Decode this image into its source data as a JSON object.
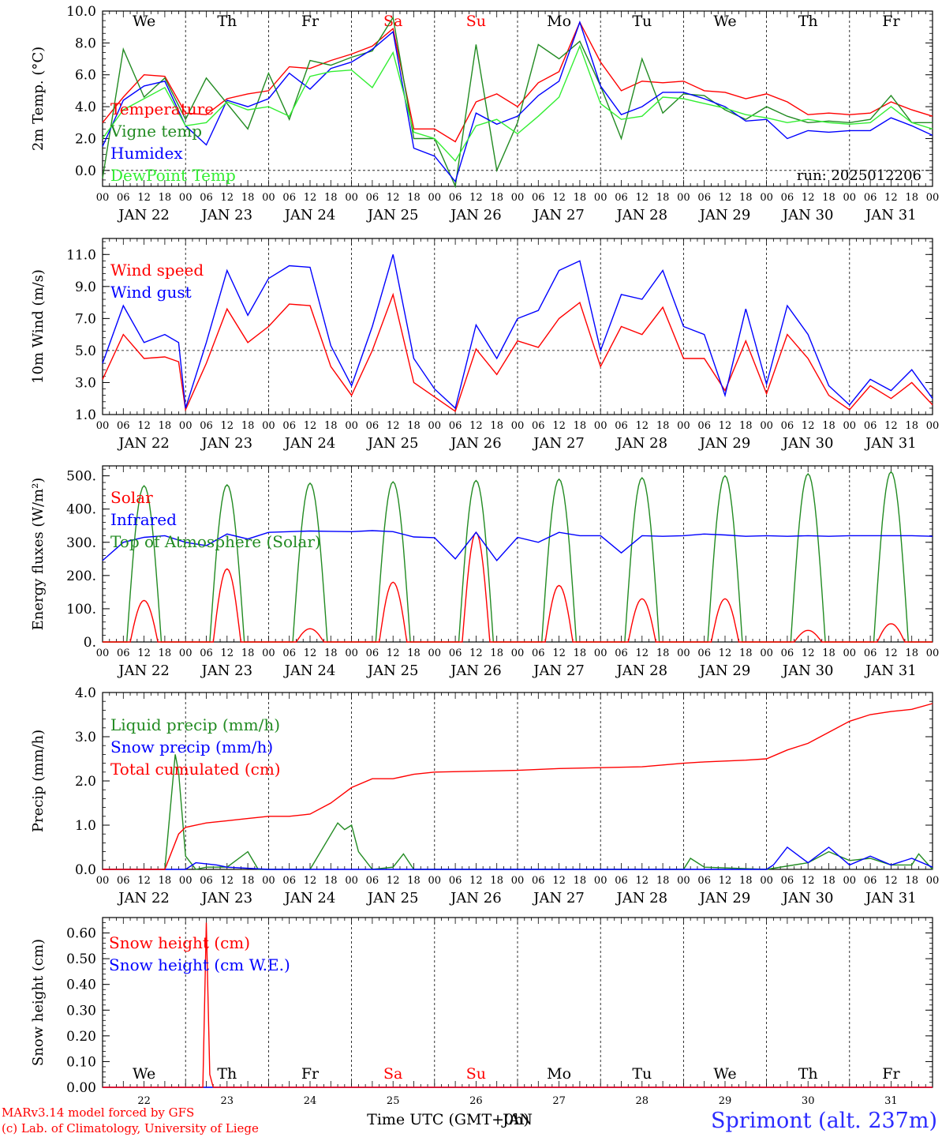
{
  "run_label": "run: 2025012206",
  "footer": {
    "model_line": "MARv3.14 model forced by GFS",
    "credit_line": "(c) Lab. of Climatology, University of Liege",
    "xaxis_title_a": "Time UTC (GMT+0h)",
    "xaxis_title_b": "JAN",
    "station": "Sprimont (alt. 237m)"
  },
  "time_axis": {
    "hour_labels": [
      "00",
      "06",
      "12",
      "18"
    ],
    "final_hour_label": "00",
    "date_labels": [
      "JAN 22",
      "JAN 23",
      "JAN 24",
      "JAN 25",
      "JAN 26",
      "JAN 27",
      "JAN 28",
      "JAN 29",
      "JAN 30",
      "JAN 31"
    ],
    "weekdays": [
      "We",
      "Th",
      "Fr",
      "Sa",
      "Su",
      "Mo",
      "Tu",
      "We",
      "Th",
      "Fr"
    ],
    "weekend_indices": [
      3,
      4
    ],
    "day_numbers": [
      "22",
      "23",
      "24",
      "25",
      "26",
      "27",
      "28",
      "29",
      "30",
      "31"
    ]
  },
  "colors": {
    "red": "#ff0000",
    "green": "#228b22",
    "blue": "#0000ff",
    "lightgreen": "#33ee33",
    "grid": "#000000"
  },
  "chart_data": [
    {
      "type": "line",
      "ylabel": "2m Temp. (°C)",
      "ylim": [
        -1.0,
        10.0
      ],
      "ytick_labels": [
        "0.0",
        "2.0",
        "4.0",
        "6.0",
        "8.0",
        "10.0"
      ],
      "yticks": [
        0,
        2,
        4,
        6,
        8,
        10
      ],
      "hline": 0.0,
      "x_unit": "hours since JAN 22 00 UTC",
      "series": [
        {
          "name": "Temperature",
          "color": "red",
          "x": [
            0,
            6,
            12,
            18,
            24,
            30,
            36,
            42,
            48,
            54,
            60,
            66,
            72,
            78,
            84,
            90,
            96,
            102,
            108,
            114,
            120,
            126,
            132,
            138,
            144,
            150,
            156,
            162,
            168,
            174,
            180,
            186,
            192,
            198,
            204,
            210,
            216,
            222,
            228,
            234,
            240
          ],
          "y": [
            3.0,
            4.6,
            6.0,
            5.9,
            3.6,
            3.5,
            4.5,
            4.8,
            5.0,
            6.5,
            6.4,
            6.9,
            7.3,
            7.8,
            8.9,
            2.6,
            2.6,
            1.8,
            4.3,
            4.8,
            4.0,
            5.5,
            6.2,
            9.3,
            6.8,
            5.0,
            5.6,
            5.5,
            5.6,
            5.0,
            4.9,
            4.5,
            4.8,
            4.3,
            3.5,
            3.6,
            3.5,
            3.6,
            4.3,
            3.8,
            3.4
          ]
        },
        {
          "name": "Vigne temp",
          "color": "green",
          "x": [
            0,
            6,
            12,
            18,
            24,
            30,
            36,
            42,
            48,
            54,
            60,
            66,
            72,
            78,
            84,
            90,
            96,
            102,
            108,
            114,
            120,
            126,
            132,
            138,
            144,
            150,
            156,
            162,
            168,
            174,
            180,
            186,
            192,
            198,
            204,
            210,
            216,
            222,
            228,
            234,
            240
          ],
          "y": [
            -0.5,
            7.6,
            4.6,
            5.8,
            3.2,
            5.8,
            4.2,
            2.6,
            6.1,
            3.2,
            6.9,
            6.6,
            7.1,
            7.5,
            9.6,
            2.0,
            2.0,
            -1.0,
            7.9,
            0.0,
            3.0,
            7.9,
            7.0,
            8.1,
            5.3,
            2.0,
            7.0,
            3.6,
            4.8,
            4.7,
            3.8,
            3.2,
            4.0,
            3.4,
            3.0,
            3.1,
            3.0,
            3.2,
            4.7,
            3.0,
            3.0
          ]
        },
        {
          "name": "Humidex",
          "color": "blue",
          "x": [
            0,
            6,
            12,
            18,
            24,
            30,
            36,
            42,
            48,
            54,
            60,
            66,
            72,
            78,
            84,
            90,
            96,
            102,
            108,
            114,
            120,
            126,
            132,
            138,
            144,
            150,
            156,
            162,
            168,
            174,
            180,
            186,
            192,
            198,
            204,
            210,
            216,
            222,
            228,
            234,
            240
          ],
          "y": [
            1.5,
            4.4,
            5.3,
            5.6,
            2.8,
            1.6,
            4.4,
            4.0,
            4.5,
            6.1,
            5.1,
            6.4,
            6.8,
            7.6,
            8.7,
            1.4,
            0.9,
            -0.7,
            3.6,
            2.9,
            3.4,
            4.7,
            5.6,
            9.3,
            5.3,
            3.5,
            4.0,
            4.9,
            4.9,
            4.5,
            4.0,
            3.1,
            3.2,
            2.0,
            2.5,
            2.4,
            2.5,
            2.5,
            3.3,
            2.8,
            2.2
          ]
        },
        {
          "name": "DewPoint Temp",
          "color": "lightgreen",
          "x": [
            0,
            6,
            12,
            18,
            24,
            30,
            36,
            42,
            48,
            54,
            60,
            66,
            72,
            78,
            84,
            90,
            96,
            102,
            108,
            114,
            120,
            126,
            132,
            138,
            144,
            150,
            156,
            162,
            168,
            174,
            180,
            186,
            192,
            198,
            204,
            210,
            216,
            222,
            228,
            234,
            240
          ],
          "y": [
            2.0,
            3.8,
            4.5,
            5.2,
            2.8,
            3.0,
            4.3,
            3.8,
            4.0,
            3.4,
            5.9,
            6.2,
            6.3,
            5.2,
            7.4,
            2.4,
            2.0,
            0.6,
            2.8,
            3.2,
            2.3,
            3.4,
            4.6,
            7.8,
            4.2,
            3.2,
            3.4,
            4.6,
            4.5,
            4.2,
            3.9,
            3.5,
            3.3,
            3.0,
            3.2,
            3.0,
            2.9,
            3.0,
            4.0,
            3.0,
            2.6
          ]
        }
      ]
    },
    {
      "type": "line",
      "ylabel": "10m Wind (m/s)",
      "ylim": [
        1.0,
        12.0
      ],
      "ytick_labels": [
        "1.0",
        "3.0",
        "5.0",
        "7.0",
        "9.0",
        "11.0"
      ],
      "yticks": [
        1,
        3,
        5,
        7,
        9,
        11
      ],
      "hline": 5.0,
      "x_unit": "hours since JAN 22 00 UTC",
      "series": [
        {
          "name": "Wind speed",
          "color": "red",
          "x": [
            0,
            6,
            12,
            18,
            22,
            24,
            30,
            36,
            42,
            48,
            54,
            60,
            66,
            72,
            78,
            84,
            90,
            96,
            102,
            108,
            114,
            120,
            126,
            132,
            138,
            144,
            150,
            156,
            162,
            168,
            174,
            180,
            186,
            192,
            198,
            204,
            210,
            216,
            222,
            228,
            234,
            240
          ],
          "y": [
            3.2,
            6.0,
            4.5,
            4.6,
            4.3,
            1.3,
            4.2,
            7.6,
            5.5,
            6.5,
            7.9,
            7.8,
            4.0,
            2.2,
            5.0,
            8.5,
            3.0,
            2.1,
            1.2,
            5.1,
            3.5,
            5.6,
            5.2,
            7.0,
            8.0,
            4.0,
            6.5,
            6.0,
            7.7,
            4.5,
            4.5,
            2.5,
            5.6,
            2.3,
            6.0,
            4.5,
            2.2,
            1.3,
            2.8,
            2.0,
            3.0,
            1.6
          ]
        },
        {
          "name": "Wind gust",
          "color": "blue",
          "x": [
            0,
            6,
            12,
            18,
            22,
            24,
            30,
            36,
            42,
            48,
            54,
            60,
            66,
            72,
            78,
            84,
            90,
            96,
            102,
            108,
            114,
            120,
            126,
            132,
            138,
            144,
            150,
            156,
            162,
            168,
            174,
            180,
            186,
            192,
            198,
            204,
            210,
            216,
            222,
            228,
            234,
            240
          ],
          "y": [
            4.2,
            7.8,
            5.5,
            6.0,
            5.5,
            1.4,
            5.5,
            10.0,
            7.2,
            9.5,
            10.3,
            10.2,
            5.3,
            2.8,
            6.5,
            11.0,
            4.5,
            2.6,
            1.4,
            6.6,
            4.5,
            7.0,
            7.5,
            10.0,
            10.6,
            5.0,
            8.5,
            8.2,
            10.0,
            6.5,
            6.0,
            2.2,
            7.6,
            2.9,
            7.8,
            6.0,
            2.8,
            1.6,
            3.2,
            2.5,
            3.8,
            2.0
          ]
        }
      ]
    },
    {
      "type": "line",
      "ylabel": "Energy fluxes (W/m²)",
      "ylim": [
        0,
        530
      ],
      "ytick_labels": [
        "0.",
        "100.",
        "200.",
        "300.",
        "400.",
        "500."
      ],
      "yticks": [
        0,
        100,
        200,
        300,
        400,
        500
      ],
      "x_unit": "hours since JAN 22 00 UTC",
      "series": [
        {
          "name": "Solar",
          "color": "red",
          "peaks": [
            125,
            220,
            40,
            180,
            330,
            170,
            130,
            130,
            35,
            55
          ]
        },
        {
          "name": "Infrared",
          "color": "blue",
          "x": [
            0,
            6,
            12,
            18,
            24,
            30,
            36,
            42,
            48,
            54,
            60,
            66,
            72,
            78,
            84,
            90,
            96,
            102,
            108,
            114,
            120,
            126,
            132,
            138,
            144,
            150,
            156,
            162,
            168,
            174,
            180,
            186,
            192,
            198,
            204,
            210,
            216,
            222,
            228,
            234,
            240
          ],
          "y": [
            245,
            300,
            315,
            320,
            300,
            290,
            325,
            310,
            330,
            332,
            334,
            333,
            332,
            335,
            332,
            316,
            314,
            250,
            330,
            245,
            315,
            300,
            330,
            320,
            320,
            268,
            320,
            318,
            320,
            325,
            322,
            318,
            320,
            318,
            320,
            318,
            320,
            320,
            320,
            320,
            318
          ]
        },
        {
          "name": "Top of Atmosphere (Solar)",
          "color": "green",
          "peaks": [
            470,
            473,
            478,
            482,
            486,
            490,
            494,
            500,
            506,
            512
          ]
        }
      ]
    },
    {
      "type": "line",
      "ylabel": "Precip (mm/h)",
      "ylim": [
        0,
        4.0
      ],
      "ytick_labels": [
        "0.0",
        "1.0",
        "2.0",
        "3.0",
        "4.0"
      ],
      "yticks": [
        0,
        1,
        2,
        3,
        4
      ],
      "x_unit": "hours since JAN 22 00 UTC",
      "series": [
        {
          "name": "Liquid precip (mm/h)",
          "color": "green",
          "x": [
            0,
            18,
            21,
            22,
            24,
            27,
            30,
            36,
            42,
            45,
            48,
            60,
            68,
            70,
            72,
            74,
            78,
            84,
            87,
            90,
            96,
            108,
            120,
            144,
            168,
            170,
            174,
            192,
            204,
            210,
            216,
            222,
            228,
            234,
            236,
            240
          ],
          "y": [
            0,
            0,
            2.6,
            2.2,
            0.3,
            0,
            0.05,
            0.05,
            0.4,
            0,
            0,
            0,
            1.05,
            0.9,
            1.0,
            0.4,
            0,
            0.05,
            0.35,
            0,
            0,
            0,
            0,
            0,
            0,
            0.25,
            0.05,
            0,
            0.15,
            0.4,
            0.2,
            0.25,
            0.1,
            0.1,
            0.35,
            0
          ]
        },
        {
          "name": "Snow precip (mm/h)",
          "color": "blue",
          "x": [
            0,
            24,
            27,
            33,
            36,
            48,
            192,
            194,
            198,
            204,
            210,
            216,
            222,
            228,
            234,
            240
          ],
          "y": [
            0,
            0,
            0.15,
            0.1,
            0.05,
            0,
            0,
            0.1,
            0.5,
            0.15,
            0.5,
            0.1,
            0.3,
            0.1,
            0.25,
            0.05
          ]
        },
        {
          "name": "Total cumulated (cm)",
          "color": "red",
          "x": [
            0,
            18,
            22,
            24,
            30,
            36,
            42,
            48,
            54,
            60,
            66,
            72,
            78,
            84,
            90,
            96,
            108,
            120,
            132,
            144,
            156,
            168,
            174,
            180,
            186,
            192,
            198,
            204,
            210,
            216,
            222,
            228,
            234,
            240
          ],
          "y": [
            0,
            0,
            0.8,
            0.95,
            1.05,
            1.1,
            1.15,
            1.2,
            1.2,
            1.25,
            1.5,
            1.85,
            2.05,
            2.05,
            2.15,
            2.2,
            2.22,
            2.24,
            2.28,
            2.3,
            2.32,
            2.4,
            2.43,
            2.45,
            2.47,
            2.5,
            2.7,
            2.85,
            3.1,
            3.35,
            3.5,
            3.57,
            3.62,
            3.75
          ]
        }
      ]
    },
    {
      "type": "line",
      "ylabel": "Snow height (cm)",
      "ylim": [
        0,
        0.66
      ],
      "ytick_labels": [
        "0.00",
        "0.10",
        "0.20",
        "0.30",
        "0.40",
        "0.50",
        "0.60"
      ],
      "yticks": [
        0,
        0.1,
        0.2,
        0.3,
        0.4,
        0.5,
        0.6
      ],
      "x_unit": "hours since JAN 22 00 UTC",
      "series": [
        {
          "name": "Snow height (cm)",
          "color": "red",
          "x": [
            0,
            29,
            30,
            31,
            32,
            240
          ],
          "y": [
            0,
            0,
            0.64,
            0.05,
            0,
            0
          ]
        },
        {
          "name": "Snow height (cm W.E.)",
          "color": "blue",
          "x": [
            0,
            240
          ],
          "y": [
            0,
            0
          ]
        }
      ]
    }
  ]
}
